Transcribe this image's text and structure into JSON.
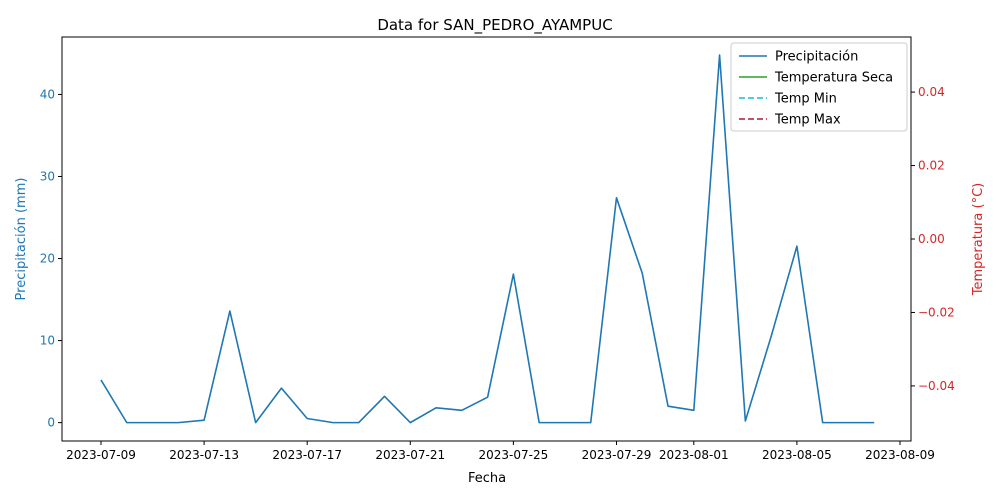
{
  "chart_data": {
    "type": "line",
    "title": "Data for SAN_PEDRO_AYAMPUC",
    "xlabel": "Fecha",
    "ylabel_left": "Precipitación (mm)",
    "ylabel_right": "Temperatura (°C)",
    "left_color": "#1f77b4",
    "right_color": "#d62728",
    "ylim_left": [
      -2.24,
      47.0
    ],
    "ylim_right": [
      -0.055,
      0.055
    ],
    "x_ticks": [
      "2023-07-09",
      "2023-07-13",
      "2023-07-17",
      "2023-07-21",
      "2023-07-25",
      "2023-07-29",
      "2023-08-01",
      "2023-08-05",
      "2023-08-09"
    ],
    "y_ticks_left": [
      "0",
      "10",
      "20",
      "30",
      "40"
    ],
    "y_ticks_right": [
      "−0.04",
      "−0.02",
      "0.00",
      "0.02",
      "0.04"
    ],
    "legend_position": "top-right",
    "grid": false,
    "series": [
      {
        "name": "Precipitación",
        "color": "#1f77b4",
        "style": "solid",
        "axis": "left",
        "x": [
          "2023-07-09",
          "2023-07-10",
          "2023-07-11",
          "2023-07-12",
          "2023-07-13",
          "2023-07-14",
          "2023-07-15",
          "2023-07-16",
          "2023-07-17",
          "2023-07-18",
          "2023-07-19",
          "2023-07-20",
          "2023-07-21",
          "2023-07-22",
          "2023-07-23",
          "2023-07-24",
          "2023-07-25",
          "2023-07-26",
          "2023-07-27",
          "2023-07-28",
          "2023-07-29",
          "2023-07-30",
          "2023-07-31",
          "2023-08-01",
          "2023-08-02",
          "2023-08-03",
          "2023-08-04",
          "2023-08-05",
          "2023-08-06",
          "2023-08-07",
          "2023-08-08"
        ],
        "values": [
          5.2,
          0.0,
          0.0,
          0.0,
          0.3,
          13.6,
          0.0,
          4.2,
          0.5,
          0.0,
          0.0,
          3.2,
          0.0,
          1.8,
          1.5,
          3.1,
          18.1,
          0.0,
          0.0,
          0.0,
          27.4,
          18.2,
          2.0,
          1.5,
          44.8,
          0.2,
          10.5,
          21.5,
          0.0,
          0.0,
          0.0
        ]
      },
      {
        "name": "Temperatura Seca",
        "color": "#2ca02c",
        "style": "solid",
        "axis": "right",
        "values": []
      },
      {
        "name": "Temp Min",
        "color": "#17becf",
        "style": "dashed",
        "axis": "right",
        "values": []
      },
      {
        "name": "Temp Max",
        "color": "#b2182b",
        "style": "dashed",
        "axis": "right",
        "values": []
      }
    ]
  }
}
